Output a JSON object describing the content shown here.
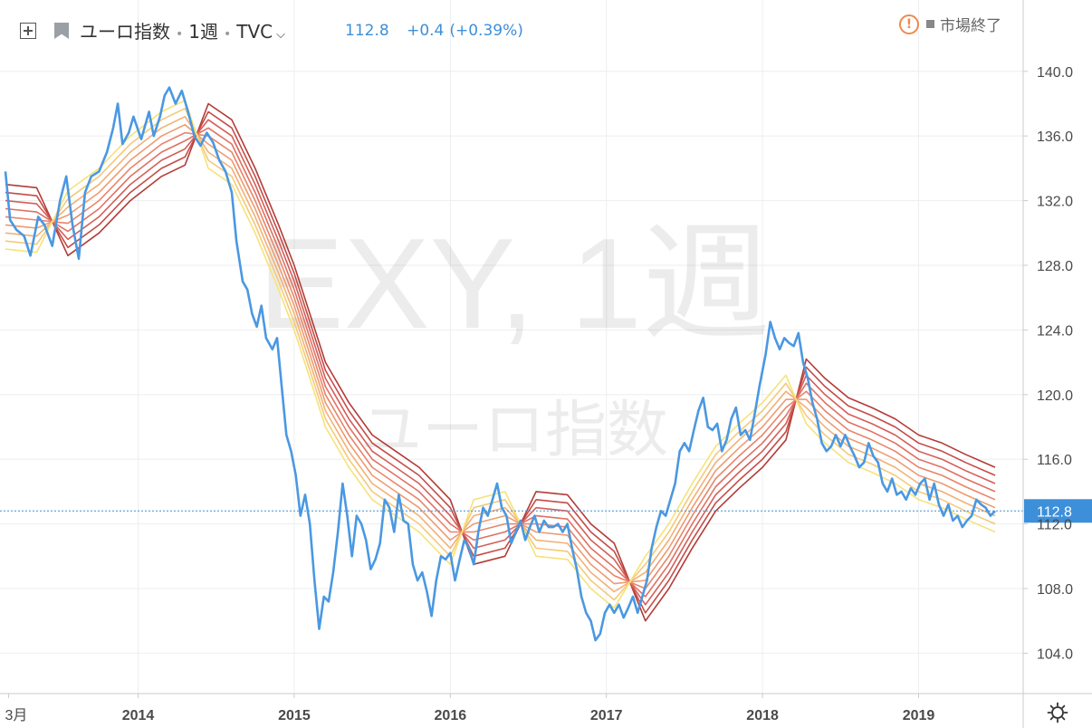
{
  "header": {
    "symbol": "ユーロ指数",
    "interval": "1週",
    "source": "TVC",
    "last": "112.8",
    "change": "+0.4",
    "change_pct": "(+0.39%)",
    "market_status": "市場終了"
  },
  "watermark": {
    "line1": "EXY, 1週",
    "line2": "ユーロ指数"
  },
  "colors": {
    "price_line": "#4a98e2",
    "last_label_bg": "#3d8fd9",
    "ribbon": [
      "#f6e27a",
      "#f5c97a",
      "#f2b176",
      "#ee9b70",
      "#e8856a",
      "#df7163",
      "#d45e58",
      "#c44c48",
      "#b23c36"
    ]
  },
  "chart_data": {
    "type": "line",
    "title": "",
    "xlabel": "",
    "ylabel": "",
    "ylim": [
      101.5,
      141.5
    ],
    "y_ticks": [
      104.0,
      108.0,
      112.0,
      116.0,
      120.0,
      124.0,
      128.0,
      132.0,
      136.0,
      140.0
    ],
    "x_ticks": [
      "3月",
      "2014",
      "2015",
      "2016",
      "2017",
      "2018",
      "2019"
    ],
    "x_tick_dates": [
      2013.17,
      2014.0,
      2015.0,
      2016.0,
      2017.0,
      2018.0,
      2019.0
    ],
    "xlim": [
      2013.15,
      2019.67
    ],
    "last_value": 112.8,
    "series": [
      {
        "type": "price",
        "points": [
          [
            2013.15,
            133.8
          ],
          [
            2013.18,
            130.8
          ],
          [
            2013.22,
            130.2
          ],
          [
            2013.27,
            129.8
          ],
          [
            2013.31,
            128.6
          ],
          [
            2013.36,
            131.0
          ],
          [
            2013.4,
            130.5
          ],
          [
            2013.45,
            129.2
          ],
          [
            2013.5,
            132.0
          ],
          [
            2013.54,
            133.5
          ],
          [
            2013.58,
            130.5
          ],
          [
            2013.62,
            128.4
          ],
          [
            2013.66,
            132.5
          ],
          [
            2013.7,
            133.5
          ],
          [
            2013.75,
            133.8
          ],
          [
            2013.8,
            135.0
          ],
          [
            2013.84,
            136.5
          ],
          [
            2013.87,
            138.0
          ],
          [
            2013.9,
            135.5
          ],
          [
            2013.94,
            136.2
          ],
          [
            2013.97,
            137.2
          ],
          [
            2014.02,
            135.8
          ],
          [
            2014.07,
            137.5
          ],
          [
            2014.1,
            136.0
          ],
          [
            2014.14,
            137.2
          ],
          [
            2014.17,
            138.5
          ],
          [
            2014.2,
            139.0
          ],
          [
            2014.24,
            138.0
          ],
          [
            2014.28,
            138.8
          ],
          [
            2014.32,
            137.5
          ],
          [
            2014.36,
            136.0
          ],
          [
            2014.4,
            135.4
          ],
          [
            2014.44,
            136.2
          ],
          [
            2014.48,
            135.6
          ],
          [
            2014.52,
            134.5
          ],
          [
            2014.56,
            133.8
          ],
          [
            2014.6,
            132.5
          ],
          [
            2014.63,
            129.5
          ],
          [
            2014.67,
            127.0
          ],
          [
            2014.7,
            126.5
          ],
          [
            2014.73,
            125.0
          ],
          [
            2014.76,
            124.2
          ],
          [
            2014.79,
            125.5
          ],
          [
            2014.82,
            123.5
          ],
          [
            2014.86,
            122.8
          ],
          [
            2014.89,
            123.5
          ],
          [
            2014.92,
            120.5
          ],
          [
            2014.95,
            117.5
          ],
          [
            2014.98,
            116.5
          ],
          [
            2015.01,
            115.0
          ],
          [
            2015.04,
            112.5
          ],
          [
            2015.07,
            113.8
          ],
          [
            2015.1,
            112.0
          ],
          [
            2015.13,
            108.5
          ],
          [
            2015.16,
            105.5
          ],
          [
            2015.19,
            107.5
          ],
          [
            2015.22,
            107.2
          ],
          [
            2015.25,
            109.0
          ],
          [
            2015.28,
            111.5
          ],
          [
            2015.31,
            114.5
          ],
          [
            2015.34,
            112.5
          ],
          [
            2015.37,
            110.0
          ],
          [
            2015.4,
            112.5
          ],
          [
            2015.43,
            112.0
          ],
          [
            2015.46,
            111.0
          ],
          [
            2015.49,
            109.2
          ],
          [
            2015.52,
            109.8
          ],
          [
            2015.55,
            110.8
          ],
          [
            2015.58,
            113.5
          ],
          [
            2015.61,
            113.0
          ],
          [
            2015.64,
            111.5
          ],
          [
            2015.67,
            113.8
          ],
          [
            2015.7,
            112.2
          ],
          [
            2015.73,
            112.0
          ],
          [
            2015.76,
            109.5
          ],
          [
            2015.79,
            108.5
          ],
          [
            2015.82,
            109.0
          ],
          [
            2015.85,
            107.8
          ],
          [
            2015.88,
            106.3
          ],
          [
            2015.91,
            108.5
          ],
          [
            2015.94,
            110.0
          ],
          [
            2015.97,
            109.8
          ],
          [
            2016.0,
            110.2
          ],
          [
            2016.03,
            108.5
          ],
          [
            2016.06,
            109.8
          ],
          [
            2016.09,
            111.0
          ],
          [
            2016.12,
            110.5
          ],
          [
            2016.15,
            109.5
          ],
          [
            2016.18,
            111.5
          ],
          [
            2016.21,
            113.0
          ],
          [
            2016.24,
            112.5
          ],
          [
            2016.27,
            113.5
          ],
          [
            2016.3,
            114.5
          ],
          [
            2016.33,
            113.0
          ],
          [
            2016.36,
            112.5
          ],
          [
            2016.39,
            110.8
          ],
          [
            2016.42,
            111.5
          ],
          [
            2016.45,
            112.2
          ],
          [
            2016.48,
            111.0
          ],
          [
            2016.51,
            111.8
          ],
          [
            2016.54,
            112.5
          ],
          [
            2016.57,
            111.5
          ],
          [
            2016.6,
            112.2
          ],
          [
            2016.63,
            111.8
          ],
          [
            2016.66,
            111.8
          ],
          [
            2016.69,
            112.0
          ],
          [
            2016.72,
            111.5
          ],
          [
            2016.75,
            112.0
          ],
          [
            2016.78,
            110.5
          ],
          [
            2016.81,
            109.2
          ],
          [
            2016.84,
            107.5
          ],
          [
            2016.87,
            106.5
          ],
          [
            2016.9,
            106.0
          ],
          [
            2016.93,
            104.8
          ],
          [
            2016.96,
            105.2
          ],
          [
            2016.99,
            106.5
          ],
          [
            2017.02,
            107.0
          ],
          [
            2017.05,
            106.5
          ],
          [
            2017.08,
            107.0
          ],
          [
            2017.11,
            106.2
          ],
          [
            2017.14,
            106.8
          ],
          [
            2017.17,
            107.5
          ],
          [
            2017.2,
            106.5
          ],
          [
            2017.23,
            107.5
          ],
          [
            2017.26,
            108.5
          ],
          [
            2017.29,
            110.5
          ],
          [
            2017.32,
            111.8
          ],
          [
            2017.35,
            112.8
          ],
          [
            2017.38,
            112.5
          ],
          [
            2017.41,
            113.5
          ],
          [
            2017.44,
            114.5
          ],
          [
            2017.47,
            116.5
          ],
          [
            2017.5,
            117.0
          ],
          [
            2017.53,
            116.5
          ],
          [
            2017.56,
            117.8
          ],
          [
            2017.59,
            119.0
          ],
          [
            2017.62,
            119.8
          ],
          [
            2017.65,
            118.0
          ],
          [
            2017.68,
            117.8
          ],
          [
            2017.71,
            118.2
          ],
          [
            2017.74,
            116.5
          ],
          [
            2017.77,
            117.2
          ],
          [
            2017.8,
            118.5
          ],
          [
            2017.83,
            119.2
          ],
          [
            2017.86,
            117.5
          ],
          [
            2017.89,
            117.8
          ],
          [
            2017.92,
            117.2
          ],
          [
            2017.95,
            118.8
          ],
          [
            2017.98,
            120.5
          ],
          [
            2018.02,
            122.5
          ],
          [
            2018.05,
            124.5
          ],
          [
            2018.08,
            123.5
          ],
          [
            2018.11,
            122.8
          ],
          [
            2018.14,
            123.5
          ],
          [
            2018.17,
            123.2
          ],
          [
            2018.2,
            123.0
          ],
          [
            2018.23,
            123.8
          ],
          [
            2018.26,
            122.0
          ],
          [
            2018.29,
            121.0
          ],
          [
            2018.32,
            119.5
          ],
          [
            2018.35,
            118.5
          ],
          [
            2018.38,
            117.0
          ],
          [
            2018.41,
            116.5
          ],
          [
            2018.44,
            116.8
          ],
          [
            2018.47,
            117.5
          ],
          [
            2018.5,
            116.8
          ],
          [
            2018.53,
            117.5
          ],
          [
            2018.56,
            116.8
          ],
          [
            2018.59,
            116.2
          ],
          [
            2018.62,
            115.5
          ],
          [
            2018.65,
            115.8
          ],
          [
            2018.68,
            117.0
          ],
          [
            2018.71,
            116.2
          ],
          [
            2018.74,
            115.8
          ],
          [
            2018.77,
            114.5
          ],
          [
            2018.8,
            114.0
          ],
          [
            2018.83,
            114.8
          ],
          [
            2018.86,
            113.8
          ],
          [
            2018.89,
            114.0
          ],
          [
            2018.92,
            113.5
          ],
          [
            2018.95,
            114.2
          ],
          [
            2018.98,
            113.8
          ],
          [
            2019.01,
            114.5
          ],
          [
            2019.04,
            114.8
          ],
          [
            2019.07,
            113.5
          ],
          [
            2019.1,
            114.5
          ],
          [
            2019.13,
            113.2
          ],
          [
            2019.16,
            112.5
          ],
          [
            2019.19,
            113.2
          ],
          [
            2019.22,
            112.2
          ],
          [
            2019.25,
            112.5
          ],
          [
            2019.28,
            111.8
          ],
          [
            2019.31,
            112.2
          ],
          [
            2019.34,
            112.5
          ],
          [
            2019.37,
            113.5
          ],
          [
            2019.4,
            113.2
          ],
          [
            2019.43,
            113.0
          ],
          [
            2019.46,
            112.5
          ],
          [
            2019.49,
            112.8
          ]
        ]
      },
      {
        "type": "ribbon",
        "name": "",
        "spread": 0.5,
        "count": 9,
        "center": [
          [
            2013.15,
            131.0
          ],
          [
            2013.35,
            130.8
          ],
          [
            2013.55,
            130.6
          ],
          [
            2013.75,
            132.0
          ],
          [
            2013.95,
            134.0
          ],
          [
            2014.15,
            135.5
          ],
          [
            2014.3,
            136.2
          ],
          [
            2014.45,
            136.0
          ],
          [
            2014.6,
            135.0
          ],
          [
            2014.75,
            132.0
          ],
          [
            2014.9,
            128.5
          ],
          [
            2015.0,
            126.0
          ],
          [
            2015.1,
            123.0
          ],
          [
            2015.2,
            120.0
          ],
          [
            2015.35,
            117.5
          ],
          [
            2015.5,
            115.5
          ],
          [
            2015.65,
            114.5
          ],
          [
            2015.8,
            113.5
          ],
          [
            2016.0,
            111.5
          ],
          [
            2016.15,
            111.5
          ],
          [
            2016.35,
            112.0
          ],
          [
            2016.55,
            112.0
          ],
          [
            2016.75,
            111.8
          ],
          [
            2016.9,
            110.0
          ],
          [
            2017.05,
            108.8
          ],
          [
            2017.25,
            108.0
          ],
          [
            2017.4,
            110.0
          ],
          [
            2017.55,
            112.5
          ],
          [
            2017.7,
            114.8
          ],
          [
            2017.85,
            116.2
          ],
          [
            2018.0,
            117.5
          ],
          [
            2018.15,
            119.2
          ],
          [
            2018.28,
            120.2
          ],
          [
            2018.4,
            119.0
          ],
          [
            2018.55,
            117.8
          ],
          [
            2018.7,
            117.2
          ],
          [
            2018.85,
            116.5
          ],
          [
            2019.0,
            115.5
          ],
          [
            2019.15,
            115.0
          ],
          [
            2019.3,
            114.3
          ],
          [
            2019.49,
            113.5
          ]
        ]
      }
    ]
  }
}
